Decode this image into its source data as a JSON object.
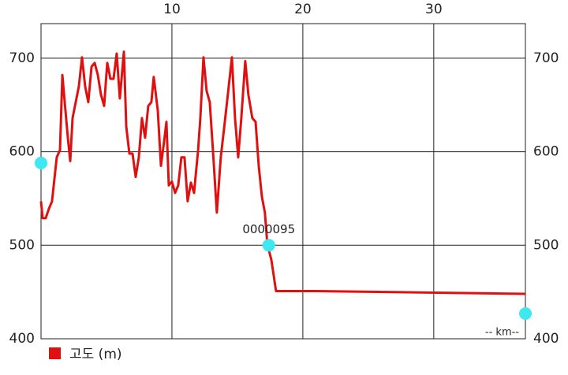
{
  "chart_data": {
    "type": "line",
    "x_label": "-- km--",
    "xlim": [
      0,
      37
    ],
    "xticks": [
      10,
      20,
      30
    ],
    "ylim": [
      400,
      737
    ],
    "yticks": [
      400,
      500,
      600,
      700
    ],
    "grid": true,
    "legend": "bottom-left",
    "series": [
      {
        "name": "고도 (m)",
        "color": "#e01010",
        "x": [
          0,
          0.12,
          0.36,
          0.6,
          0.84,
          1.2,
          1.45,
          1.63,
          1.81,
          2.05,
          2.23,
          2.41,
          2.65,
          2.89,
          3.13,
          3.37,
          3.61,
          3.86,
          4.1,
          4.34,
          4.58,
          4.82,
          5.06,
          5.3,
          5.54,
          5.78,
          6.02,
          6.33,
          6.51,
          6.75,
          6.99,
          7.23,
          7.47,
          7.71,
          7.95,
          8.19,
          8.43,
          8.61,
          8.92,
          9.16,
          9.4,
          9.58,
          9.76,
          10,
          10.24,
          10.48,
          10.72,
          10.96,
          11.2,
          11.45,
          11.69,
          12.0,
          12.17,
          12.41,
          12.65,
          12.89,
          13.13,
          13.43,
          13.73,
          14.0,
          14.34,
          14.58,
          14.82,
          15.06,
          15.3,
          15.6,
          15.84,
          16.14,
          16.39,
          16.63,
          16.87,
          17.1,
          17.29,
          17.6,
          17.95,
          20.96,
          37
        ],
        "values": [
          547,
          529,
          529,
          539,
          547,
          594,
          602,
          682,
          653,
          615,
          590,
          636,
          653,
          670,
          701,
          670,
          653,
          691,
          695,
          682,
          661,
          649,
          695,
          678,
          678,
          705,
          657,
          707,
          627,
          598,
          598,
          573,
          594,
          636,
          615,
          649,
          653,
          680,
          644,
          585,
          611,
          632,
          564,
          568,
          556,
          564,
          594,
          594,
          547,
          567,
          556,
          602,
          636,
          701,
          665,
          653,
          602,
          535,
          594,
          627,
          670,
          701,
          636,
          594,
          636,
          697,
          661,
          636,
          632,
          585,
          552,
          535,
          501,
          484,
          451,
          451,
          448
        ]
      }
    ],
    "markers": {
      "color": "#3ee8f0",
      "x": [
        0,
        17.4,
        37
      ],
      "y": [
        588,
        500,
        427
      ],
      "labels": [
        null,
        "0000095",
        null
      ]
    }
  }
}
